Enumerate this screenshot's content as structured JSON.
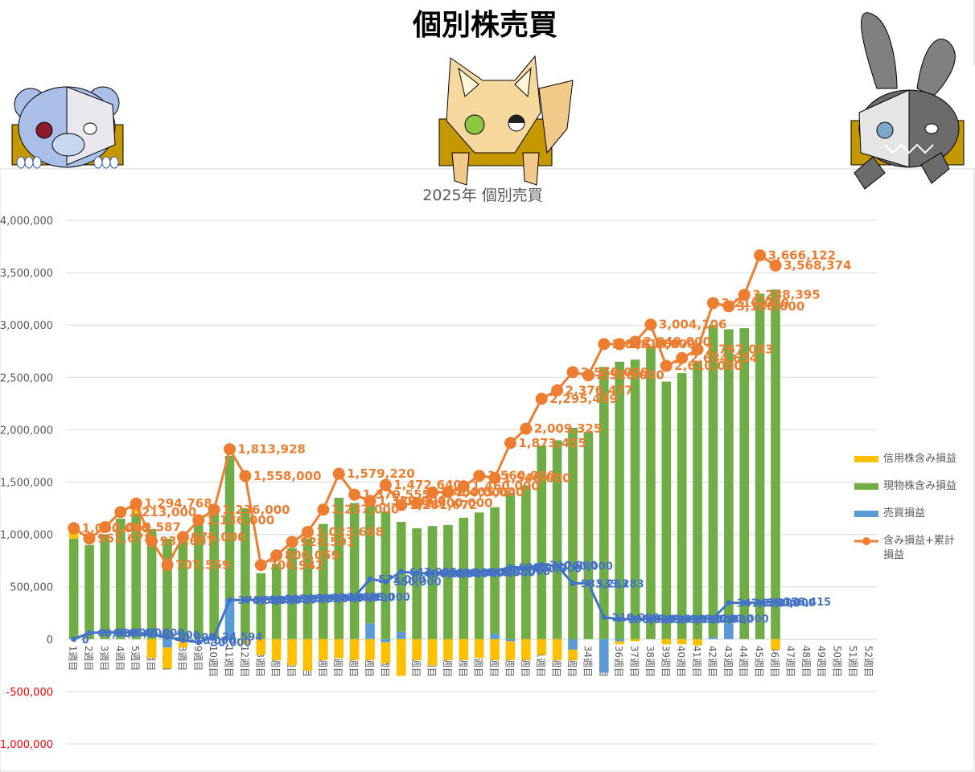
{
  "page_title": "個別株売買",
  "chart_data": {
    "type": "bar",
    "stacked": true,
    "title": "2025年 個別売買",
    "categories": [
      "1週目",
      "2週目",
      "3週目",
      "4週目",
      "5週目",
      "6週目",
      "7週目",
      "8週目",
      "9週目",
      "10週目",
      "11週目",
      "12週目",
      "13週目",
      "14週目",
      "15週目",
      "16週目",
      "17週目",
      "18週目",
      "19週目",
      "20週目",
      "21週目",
      "22週目",
      "23週目",
      "24週目",
      "25週目",
      "26週目",
      "27週目",
      "28週目",
      "29週目",
      "30週目",
      "31週目",
      "32週目",
      "33週目",
      "34週目",
      "35週目",
      "36週目",
      "37週目",
      "38週目",
      "39週目",
      "40週目",
      "41週目",
      "42週目",
      "43週目",
      "44週目",
      "45週目",
      "46週目",
      "47週目",
      "48週目",
      "49週目",
      "50週目",
      "51週目",
      "52週目"
    ],
    "ylim": [
      -1000000,
      4000000
    ],
    "yticks": [
      {
        "value": -1000000,
        "label": "-1,000,000"
      },
      {
        "value": -500000,
        "label": "-500,000"
      },
      0,
      {
        "value": 500000,
        "label": "500,000"
      },
      {
        "value": 1000000,
        "label": "1,000,000"
      },
      {
        "value": 1500000,
        "label": "1,500,000"
      },
      {
        "value": 2000000,
        "label": "2,000,000"
      },
      {
        "value": 2500000,
        "label": "2,500,000"
      },
      {
        "value": 3000000,
        "label": "3,000,000"
      },
      {
        "value": 3500000,
        "label": "3,500,000"
      },
      {
        "value": 4000000,
        "label": "4,000,000"
      }
    ],
    "negative_tick_color": "#ff0000",
    "grid": true,
    "legend": "right",
    "series": [
      {
        "name": "信用株含み損益",
        "type": "bar",
        "color": "#ffc000",
        "values": [
          90000,
          0,
          0,
          0,
          80000,
          -180000,
          -200000,
          -80000,
          0,
          0,
          0,
          -50000,
          -150000,
          -200000,
          -250000,
          -300000,
          -200000,
          -180000,
          -200000,
          -200000,
          -200000,
          -350000,
          -200000,
          -250000,
          -200000,
          -200000,
          -180000,
          -200000,
          -180000,
          -200000,
          -150000,
          -200000,
          -100000,
          0,
          0,
          -30000,
          -20000,
          0,
          -50000,
          -50000,
          -60000,
          0,
          0,
          0,
          0,
          -100000,
          null,
          null,
          null,
          null,
          null,
          null
        ]
      },
      {
        "name": "現物株含み損益",
        "type": "bar",
        "color": "#70ad47",
        "values": [
          960000,
          900000,
          1000000,
          1150000,
          1200000,
          1050000,
          960000,
          1000000,
          1100000,
          1200000,
          1370000,
          1250000,
          630000,
          720000,
          870000,
          960000,
          1100000,
          1350000,
          1300000,
          1150000,
          1220000,
          1050000,
          1060000,
          1080000,
          1090000,
          1160000,
          1210000,
          1210000,
          1400000,
          1470000,
          1850000,
          1900000,
          2020000,
          1980000,
          2600000,
          2650000,
          2670000,
          2800000,
          2460000,
          2540000,
          2650000,
          2980000,
          2810000,
          2970000,
          3300000,
          3340000,
          null,
          null,
          null,
          null,
          null,
          null
        ]
      },
      {
        "name": "売買損益",
        "type": "bar",
        "color": "#5b9bd5",
        "values": [
          0,
          0,
          0,
          0,
          0,
          0,
          -80000,
          0,
          0,
          0,
          380000,
          0,
          0,
          0,
          0,
          0,
          0,
          0,
          0,
          150000,
          -30000,
          70000,
          0,
          0,
          0,
          0,
          0,
          50000,
          -20000,
          0,
          0,
          0,
          -100000,
          0,
          -320000,
          -20000,
          0,
          0,
          0,
          0,
          0,
          20000,
          150000,
          0,
          0,
          0,
          null,
          null,
          null,
          null,
          null,
          null
        ]
      },
      {
        "name": "含み損益+累計損益",
        "type": "line",
        "color": "#ed7d31",
        "values": [
          1060000,
          961678,
          1069587,
          1213000,
          1294768,
          937007,
          707559,
          975000,
          1136000,
          1236000,
          1813928,
          1558000,
          706942,
          800059,
          928591,
          1023668,
          1237000,
          1579220,
          1379555,
          1320000,
          1472640,
          1281672,
          1300000,
          1400000,
          1405000,
          1460000,
          1560000,
          1540000,
          1873455,
          2009325,
          2295499,
          2376477,
          2550000,
          2520000,
          2818000,
          2818000,
          2840000,
          3004106,
          2610000,
          2684654,
          2767083,
          3210000,
          3180000,
          3288395,
          3666122,
          3568374,
          null,
          null,
          null,
          null,
          null,
          null
        ],
        "value_labels": [
          "1,060,000",
          "961,678",
          "1,069,587",
          "1,213,000",
          "1,294,768",
          "937,007",
          "707,559",
          "975,000",
          "1,136,000",
          "1,236,000",
          "1,813,928",
          "1,558,000",
          "706,942",
          "800,059",
          "928,591",
          "1,023,668",
          "1,237,000",
          "1,579,220",
          "1,379,555",
          "1,320,000",
          "1,472,640",
          "1,281,672",
          "1,300,000",
          "1,400,000",
          "1,405,000",
          "1,460,000",
          "1,560,000",
          "1,540,000",
          "1,873,455",
          "2,009,325",
          "2,295,499",
          "2,376,477",
          "2,550,000",
          "2,520,000",
          "2,818,000",
          "2,818,000",
          "2,840,000",
          "3,004,106",
          "2,610,000",
          "2,684,654",
          "2,767,083",
          "3,210,000",
          "3,180,000",
          "3,288,395",
          "3,666,122",
          "3,568,374",
          null,
          null,
          null,
          null,
          null,
          null
        ]
      },
      {
        "type": "line",
        "color": "#4472c4",
        "values": [
          0,
          60000,
          65000,
          65000,
          65000,
          40000,
          20000,
          -10000,
          -30000,
          24594,
          374000,
          374000,
          380000,
          385000,
          390000,
          395000,
          400000,
          400000,
          405000,
          573000,
          550000,
          643925,
          630000,
          630000,
          635000,
          640000,
          640000,
          650000,
          690000,
          680000,
          710000,
          700000,
          533283,
          533283,
          210000,
          190000,
          195000,
          195000,
          190000,
          195000,
          195000,
          200000,
          347374,
          347000,
          350000,
          358415,
          null,
          null,
          null,
          null,
          null,
          null
        ],
        "value_labels": [
          "0",
          "60,000",
          "65,000",
          "65,000",
          "65,000",
          "40,000",
          "20,000",
          "-10,000",
          "-30,000",
          "24,594",
          "374,000",
          "374,000",
          "380,000",
          "385,000",
          "390,000",
          "395,000",
          "400,000",
          "400,000",
          "405,000",
          "573,000",
          "550,000",
          "643,925",
          "630,000",
          "630,000",
          "635,000",
          "640,000",
          "640,000",
          "650,000",
          "690,000",
          "680,000",
          "710,000",
          "700,000",
          "533,283",
          "533,283",
          "210,000",
          "190,000",
          "195,000",
          "195,000",
          "190,000",
          "195,000",
          "195,000",
          "200,000",
          "347,374",
          "347,000",
          "350,000",
          "358,415",
          null,
          null,
          null,
          null,
          null,
          null
        ]
      }
    ]
  }
}
